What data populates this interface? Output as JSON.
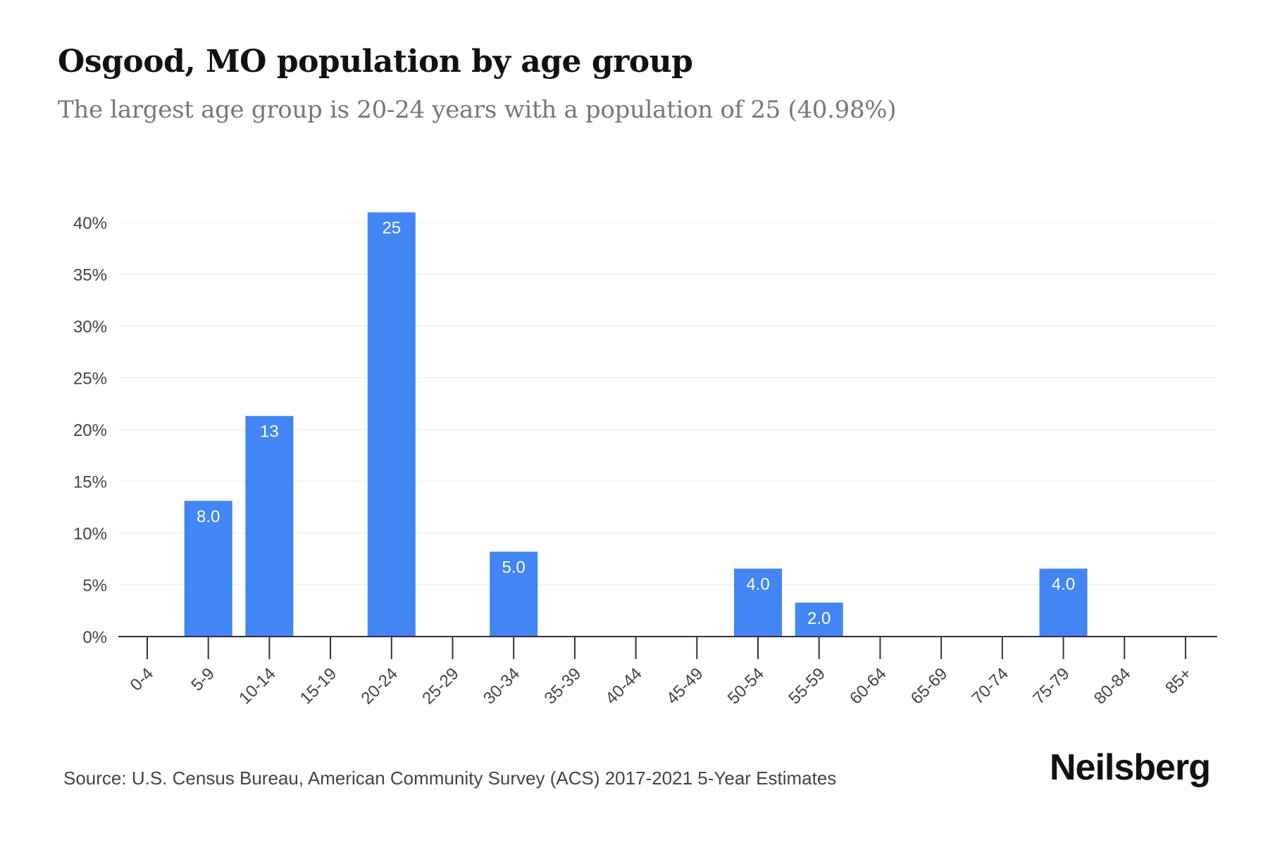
{
  "header": {
    "title": "Osgood, MO population by age group",
    "subtitle": "The largest age group is 20-24 years with a population of 25 (40.98%)"
  },
  "footer": {
    "source": "Source: U.S. Census Bureau, American Community Survey (ACS) 2017-2021 5-Year Estimates",
    "brand": "Neilsberg"
  },
  "colors": {
    "bar": "#4285f4",
    "grid": "#eeeeee",
    "axis": "#333333",
    "tick_text": "#444444",
    "bar_label": "#ffffff"
  },
  "chart_data": {
    "type": "bar",
    "categories": [
      "0-4",
      "5-9",
      "10-14",
      "15-19",
      "20-24",
      "25-29",
      "30-34",
      "35-39",
      "40-44",
      "45-49",
      "50-54",
      "55-59",
      "60-64",
      "65-69",
      "70-74",
      "75-79",
      "80-84",
      "85+"
    ],
    "percent": [
      0,
      13.11,
      21.31,
      0,
      40.98,
      0,
      8.2,
      0,
      0,
      0,
      6.56,
      3.28,
      0,
      0,
      0,
      6.56,
      0,
      0
    ],
    "bar_labels": [
      "",
      "8.0",
      "13",
      "",
      "25",
      "",
      "5.0",
      "",
      "",
      "",
      "4.0",
      "2.0",
      "",
      "",
      "",
      "4.0",
      "",
      ""
    ],
    "y_ticks": [
      0,
      5,
      10,
      15,
      20,
      25,
      30,
      35,
      40
    ],
    "y_tick_labels": [
      "0%",
      "5%",
      "10%",
      "15%",
      "20%",
      "25%",
      "30%",
      "35%",
      "40%"
    ],
    "ylim": [
      0,
      40
    ],
    "grid": true
  }
}
